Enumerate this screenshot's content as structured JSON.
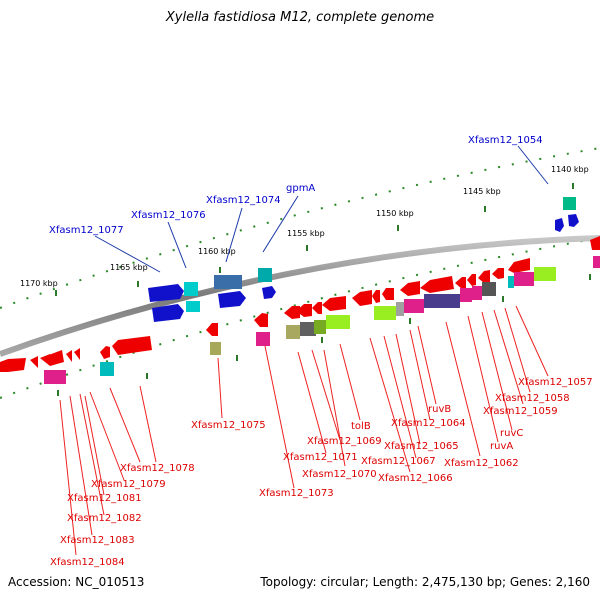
{
  "title": "Xylella fastidiosa M12, complete genome",
  "scale": {
    "ticks": [
      "1170 kbp",
      "1165 kbp",
      "1160 kbp",
      "1155 kbp",
      "1150 kbp",
      "1145 kbp",
      "1140 kbp"
    ]
  },
  "labels": {
    "top": [
      "Xfasm12_1077",
      "Xfasm12_1076",
      "Xfasm12_1074",
      "gpmA",
      "Xfasm12_1054"
    ],
    "bottom": [
      "Xfasm12_1084",
      "Xfasm12_1083",
      "Xfasm12_1082",
      "Xfasm12_1081",
      "Xfasm12_1079",
      "Xfasm12_1078",
      "Xfasm12_1075",
      "Xfasm12_1073",
      "Xfasm12_1070",
      "Xfasm12_1071",
      "Xfasm12_1069",
      "tolB",
      "Xfasm12_1066",
      "Xfasm12_1067",
      "Xfasm12_1065",
      "Xfasm12_1064",
      "ruvB",
      "Xfasm12_1062",
      "ruvA",
      "ruvC",
      "Xfasm12_1059",
      "Xfasm12_1058",
      "Xfasm12_1057"
    ]
  },
  "colors": {
    "forward_label": "#0000cc",
    "reverse_label": "#dd0000",
    "scale_tick": "#2a8a2a",
    "backbone": "#7a7a7a"
  },
  "footer": {
    "accession": "Accession: NC_010513",
    "topology": "Topology: circular; Length: 2,475,130 bp; Genes: 2,160"
  }
}
